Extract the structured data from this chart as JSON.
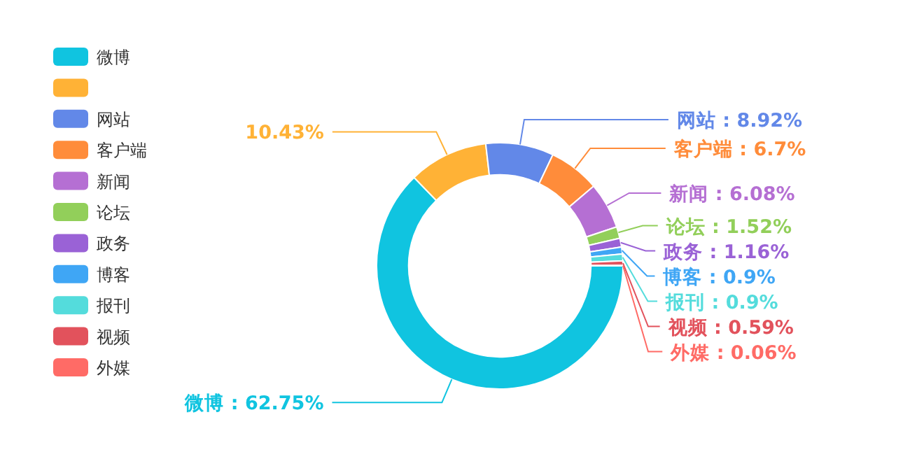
{
  "chart_data": {
    "type": "donut",
    "categories": [
      "微博",
      null,
      "网站",
      "客户端",
      "新闻",
      "论坛",
      "政务",
      "博客",
      "报刊",
      "视频",
      "外媒"
    ],
    "values": [
      62.75,
      10.43,
      8.92,
      6.7,
      6.08,
      1.52,
      1.16,
      0.9,
      0.9,
      0.59,
      0.06
    ],
    "value_labels": [
      ": 62.75%",
      "10.43%",
      ": 8.92%",
      ": 6.7%",
      ": 6.08%",
      ": 1.52%",
      ": 1.16%",
      ": 0.9%",
      ": 0.9%",
      ": 0.59%",
      ": 0.06%"
    ],
    "colors": [
      "#10c4e0",
      "#ffb236",
      "#6288e8",
      "#ff8c3a",
      "#b56fd3",
      "#92cf5a",
      "#9a62d6",
      "#3fa6f5",
      "#54dcdc",
      "#e2525c",
      "#ff6b66"
    ],
    "legend": "top left"
  }
}
